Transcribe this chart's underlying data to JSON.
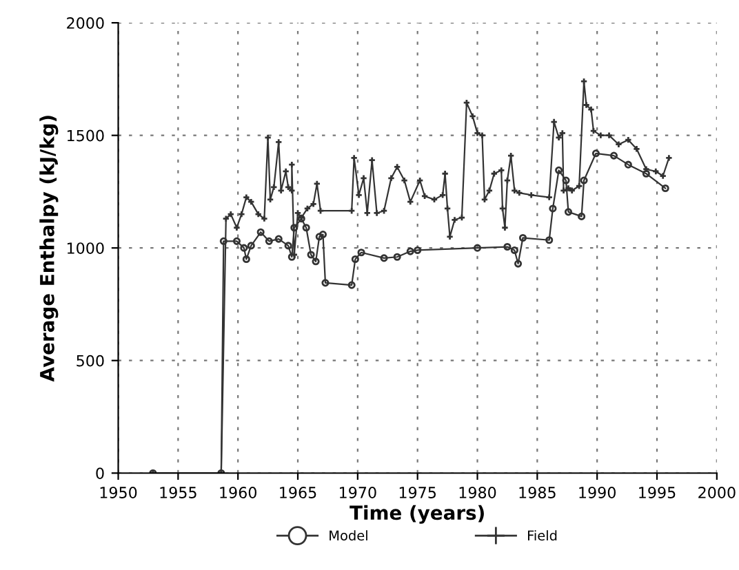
{
  "chart_data": {
    "type": "line",
    "xlabel": "Time (years)",
    "ylabel": "Average Enthalpy (kJ/kg)",
    "xlim": [
      1950,
      2000
    ],
    "xticks": [
      1950,
      1955,
      1960,
      1965,
      1970,
      1975,
      1980,
      1985,
      1990,
      1995,
      2000
    ],
    "ylim": [
      0,
      2000
    ],
    "yticks": [
      0,
      500,
      1000,
      1500,
      2000
    ],
    "grid": true,
    "legend": "bottom",
    "line_style": "solid",
    "series": [
      {
        "name": "Model",
        "color": "#333333",
        "marker": "circle",
        "x": [
          1952.9,
          1958.6,
          1958.8,
          1959.9,
          1960.5,
          1960.7,
          1961.1,
          1961.9,
          1962.6,
          1963.4,
          1964.2,
          1964.5,
          1964.7,
          1965.3,
          1965.7,
          1966.1,
          1966.5,
          1966.8,
          1967.1,
          1967.3,
          1969.5,
          1969.8,
          1970.3,
          1972.2,
          1973.3,
          1974.4,
          1975.0,
          1980.0,
          1982.5,
          1983.1,
          1983.4,
          1983.8,
          1986.0,
          1986.3,
          1986.8,
          1987.4,
          1987.6,
          1988.7,
          1988.9,
          1989.9,
          1991.4,
          1992.6,
          1994.1,
          1995.7
        ],
        "values": [
          0,
          0,
          1030,
          1030,
          1000,
          950,
          1010,
          1070,
          1030,
          1040,
          1010,
          960,
          1090,
          1130,
          1090,
          970,
          940,
          1050,
          1060,
          845,
          835,
          950,
          980,
          955,
          960,
          985,
          990,
          1000,
          1005,
          990,
          930,
          1045,
          1035,
          1175,
          1345,
          1300,
          1160,
          1140,
          1300,
          1420,
          1410,
          1370,
          1330,
          1265
        ]
      },
      {
        "name": "Field",
        "color": "#333333",
        "marker": "cross",
        "x": [
          1952.9,
          1958.6,
          1959.0,
          1959.4,
          1959.9,
          1960.3,
          1960.7,
          1961.1,
          1961.7,
          1962.2,
          1962.5,
          1962.7,
          1963.0,
          1963.4,
          1963.6,
          1964.0,
          1964.2,
          1964.5,
          1964.5,
          1964.7,
          1965.0,
          1965.3,
          1965.8,
          1966.3,
          1966.6,
          1966.9,
          1969.5,
          1969.7,
          1970.1,
          1970.5,
          1970.8,
          1971.2,
          1971.6,
          1972.2,
          1972.8,
          1973.3,
          1973.9,
          1974.4,
          1975.2,
          1975.6,
          1976.4,
          1977.1,
          1977.3,
          1977.5,
          1977.7,
          1978.1,
          1978.7,
          1979.1,
          1979.6,
          1980.0,
          1980.4,
          1980.6,
          1981.0,
          1981.4,
          1982.0,
          1982.1,
          1982.3,
          1982.5,
          1982.8,
          1983.1,
          1983.5,
          1984.5,
          1986.0,
          1986.4,
          1986.8,
          1987.1,
          1987.2,
          1987.6,
          1987.9,
          1988.5,
          1988.9,
          1989.1,
          1989.5,
          1989.7,
          1990.3,
          1991.0,
          1991.8,
          1992.6,
          1993.3,
          1994.1,
          1994.9,
          1995.5,
          1996.0
        ],
        "values": [
          0,
          0,
          1130,
          1150,
          1090,
          1150,
          1225,
          1205,
          1150,
          1130,
          1490,
          1215,
          1270,
          1470,
          1255,
          1340,
          1270,
          1255,
          1370,
          970,
          1155,
          1135,
          1175,
          1195,
          1285,
          1165,
          1165,
          1400,
          1235,
          1310,
          1155,
          1390,
          1155,
          1165,
          1310,
          1360,
          1300,
          1205,
          1300,
          1230,
          1215,
          1235,
          1330,
          1175,
          1050,
          1125,
          1135,
          1645,
          1585,
          1510,
          1500,
          1215,
          1255,
          1330,
          1345,
          1175,
          1090,
          1300,
          1410,
          1255,
          1245,
          1235,
          1225,
          1560,
          1490,
          1510,
          1255,
          1265,
          1255,
          1275,
          1740,
          1635,
          1615,
          1520,
          1500,
          1500,
          1460,
          1480,
          1440,
          1350,
          1340,
          1320,
          1400
        ]
      }
    ]
  }
}
